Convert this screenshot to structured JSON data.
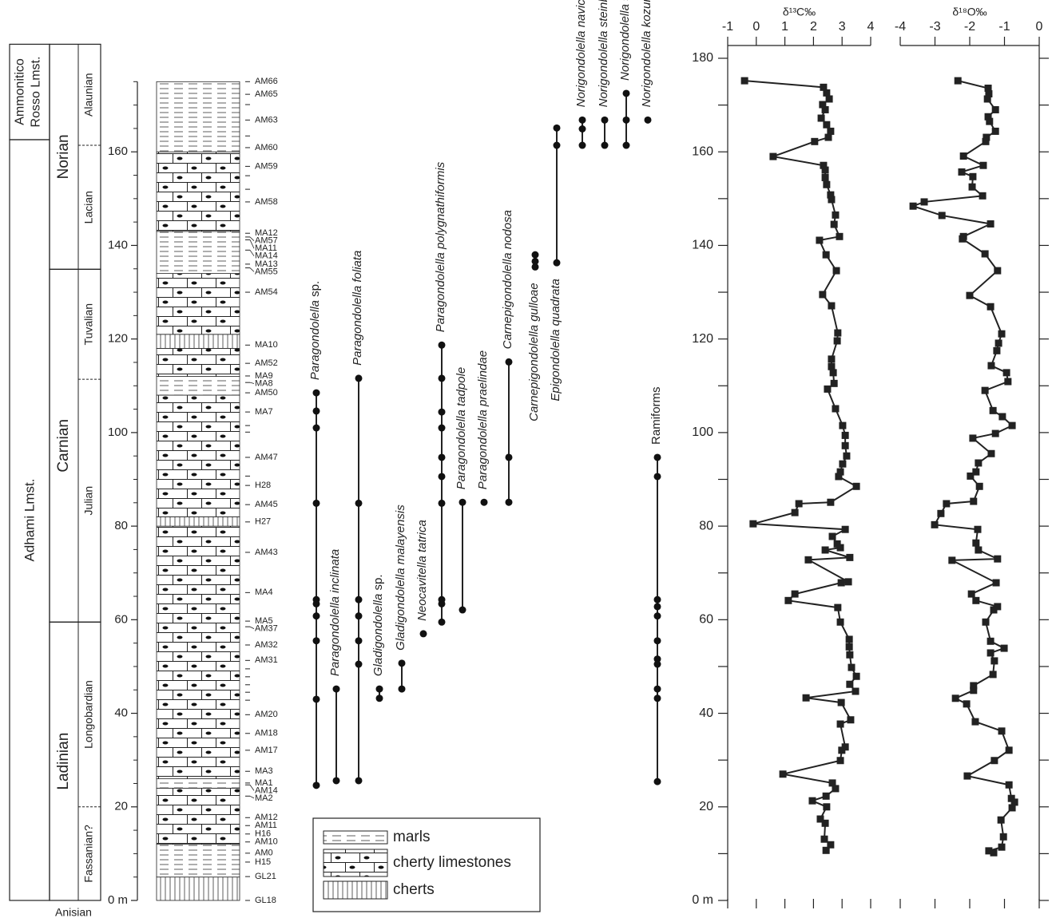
{
  "chart_data": [
    {
      "type": "range",
      "ylim": [
        0,
        180
      ],
      "yticks": [
        {
          "value": 0,
          "label": "0 m"
        },
        20,
        40,
        60,
        80,
        100,
        120,
        140,
        160
      ],
      "minor_yticks": [
        5,
        10,
        15,
        25,
        30,
        35,
        45,
        50,
        55,
        65,
        70,
        75,
        85,
        90,
        95,
        105,
        110,
        115,
        125,
        130,
        135,
        145,
        150,
        155,
        165,
        170,
        175
      ],
      "formations": [
        {
          "name": "Adhami Lmst.",
          "from": 0,
          "to": 162.6
        },
        {
          "name": "Ammonitico Rosso Lmst.",
          "from": 162.6,
          "to": 183
        }
      ],
      "stages": [
        {
          "name": "Ladinian",
          "from": 0,
          "to": 59.5
        },
        {
          "name": "Carnian",
          "from": 59.5,
          "to": 134.9
        },
        {
          "name": "Norian",
          "from": 134.9,
          "to": 183
        }
      ],
      "base_stage": "Anisian",
      "substages": [
        {
          "name": "Fassanian?",
          "from": 0,
          "to": 20
        },
        {
          "name": "Longobardian",
          "from": 20,
          "to": 59.5
        },
        {
          "name": "Julian",
          "from": 59.5,
          "to": 111.4
        },
        {
          "name": "Tuvalian",
          "from": 111.4,
          "to": 134.9
        },
        {
          "name": "Lacian",
          "from": 134.9,
          "to": 161.4
        },
        {
          "name": "Alaunian",
          "from": 161.4,
          "to": 183
        }
      ],
      "lithology": {
        "types": [
          "marls",
          "cherty limestones",
          "cherts"
        ],
        "beds": [
          {
            "from": 0,
            "to": 5,
            "type": "cherts"
          },
          {
            "from": 5,
            "to": 12,
            "type": "marls"
          },
          {
            "from": 12,
            "to": 24,
            "type": "cherty limestones"
          },
          {
            "from": 24,
            "to": 26,
            "type": "marls"
          },
          {
            "from": 26,
            "to": 80,
            "type": "cherty limestones"
          },
          {
            "from": 80,
            "to": 82,
            "type": "cherts"
          },
          {
            "from": 82,
            "to": 108,
            "type": "cherty limestones"
          },
          {
            "from": 108,
            "to": 112,
            "type": "marls"
          },
          {
            "from": 112,
            "to": 118,
            "type": "cherty limestones"
          },
          {
            "from": 118,
            "to": 121,
            "type": "cherts"
          },
          {
            "from": 121,
            "to": 134,
            "type": "cherty limestones"
          },
          {
            "from": 134,
            "to": 143,
            "type": "marls"
          },
          {
            "from": 143,
            "to": 160,
            "type": "cherty limestones"
          },
          {
            "from": 160,
            "to": 175,
            "type": "marls"
          }
        ]
      },
      "samples": [
        {
          "label": "AM66",
          "depth": 175
        },
        {
          "label": "AM65",
          "depth": 172.3
        },
        {
          "label": null,
          "depth": 170.1
        },
        {
          "label": "AM63",
          "depth": 166.8
        },
        {
          "label": null,
          "depth": 163.4
        },
        {
          "label": "AM60",
          "depth": 160.9
        },
        {
          "label": "AM59",
          "depth": 156.9
        },
        {
          "label": null,
          "depth": 154.9
        },
        {
          "label": null,
          "depth": 152
        },
        {
          "label": "AM58",
          "depth": 149.3
        },
        {
          "label": "MA12",
          "depth": 142.6
        },
        {
          "label": "AM57",
          "depth": 141.8
        },
        {
          "label": "MA11",
          "depth": 141.2
        },
        {
          "label": "MA14",
          "depth": 139
        },
        {
          "label": "MA13",
          "depth": 136
        },
        {
          "label": "AM55",
          "depth": 135.2
        },
        {
          "label": "AM54",
          "depth": 130
        },
        {
          "label": "MA10",
          "depth": 118.7
        },
        {
          "label": "AM52",
          "depth": 114.8
        },
        {
          "label": "MA9",
          "depth": 112.1
        },
        {
          "label": "MA8",
          "depth": 110.7
        },
        {
          "label": "AM50",
          "depth": 108.5
        },
        {
          "label": "MA7",
          "depth": 104.4
        },
        {
          "label": null,
          "depth": 101.5
        },
        {
          "label": null,
          "depth": 100.1
        },
        {
          "label": "AM47",
          "depth": 94.7
        },
        {
          "label": null,
          "depth": 90.7
        },
        {
          "label": "H28",
          "depth": 88.7
        },
        {
          "label": "AM45",
          "depth": 84.6
        },
        {
          "label": "H27",
          "depth": 80.9
        },
        {
          "label": "AM43",
          "depth": 74.4
        },
        {
          "label": "MA4",
          "depth": 65.8
        },
        {
          "label": "MA5",
          "depth": 59.7
        },
        {
          "label": "AM37",
          "depth": 58.5
        },
        {
          "label": "AM32",
          "depth": 54.6
        },
        {
          "label": "AM31",
          "depth": 51.3
        },
        {
          "label": null,
          "depth": 49.5
        },
        {
          "label": null,
          "depth": 47.8
        },
        {
          "label": null,
          "depth": 46.1
        },
        {
          "label": null,
          "depth": 44.5
        },
        {
          "label": null,
          "depth": 42.8
        },
        {
          "label": "AM20",
          "depth": 39.7
        },
        {
          "label": "AM18",
          "depth": 35.7
        },
        {
          "label": "AM17",
          "depth": 32.1
        },
        {
          "label": "MA3",
          "depth": 27.6
        },
        {
          "label": "MA1",
          "depth": 25.1
        },
        {
          "label": "AM14",
          "depth": 24.7
        },
        {
          "label": "MA2",
          "depth": 22.3
        },
        {
          "label": "AM12",
          "depth": 17.7
        },
        {
          "label": "AM11",
          "depth": 16
        },
        {
          "label": "H16",
          "depth": 14.2
        },
        {
          "label": "AM10",
          "depth": 12.5
        },
        {
          "label": "AM0",
          "depth": 10.1
        },
        {
          "label": "H15",
          "depth": 8.2
        },
        {
          "label": "GL21",
          "depth": 5.1
        },
        {
          "label": "GL18",
          "depth": 0
        }
      ],
      "taxa": [
        {
          "name": "Paragondolella sp.",
          "occurrences": [
            108.5,
            104.6,
            101,
            84.9,
            64.3,
            63.4,
            60.8,
            55.5,
            43,
            24.6
          ]
        },
        {
          "name": "Paragondolella inclinata",
          "occurrences": [
            45.2,
            25.6
          ]
        },
        {
          "name": "Paragondolella foliata",
          "occurrences": [
            111.6,
            84.9,
            64.3,
            60.8,
            55.5,
            50.5,
            25.6
          ]
        },
        {
          "name": "Gladigondolella sp.",
          "occurrences": [
            45.2,
            43.2
          ]
        },
        {
          "name": "Gladigondolella malayensis",
          "occurrences": [
            50.7,
            45.2
          ]
        },
        {
          "name": "Neocavitella tatrica",
          "occurrences": [
            57
          ]
        },
        {
          "name": "Paragondolella polygnathiformis",
          "occurrences": [
            118.7,
            111.6,
            104.4,
            101,
            94.7,
            90.6,
            84.9,
            64.3,
            63.4,
            59.5
          ]
        },
        {
          "name": "Paragondolella tadpole",
          "occurrences": [
            85.1,
            62.1
          ]
        },
        {
          "name": "Paragondolella praelindae",
          "occurrences": [
            85.1
          ]
        },
        {
          "name": "Carnepigondolella nodosa",
          "occurrences": [
            115.1,
            94.7,
            85.1
          ]
        },
        {
          "name": "Carnepigondolella gulloae",
          "occurrences": [
            138,
            136.6,
            135.4
          ]
        },
        {
          "name": "Epigondolella quadrata",
          "occurrences": [
            165.1,
            161.4,
            136.3
          ]
        },
        {
          "name": "Norigondolella navicula",
          "occurrences": [
            166.8,
            164.9,
            161.4
          ]
        },
        {
          "name": "Norigondolella steinbergensis",
          "occurrences": [
            166.8,
            161.4
          ]
        },
        {
          "name": "Norigondolella sp.",
          "occurrences": [
            172.5,
            166.8,
            161.4
          ]
        },
        {
          "name": "Norigondolella kozuri",
          "occurrences": [
            166.8
          ]
        },
        {
          "name": "Ramiforms",
          "occurrences": [
            94.7,
            90.6,
            64.3,
            62.8,
            60.8,
            55.5,
            51.6,
            50.5,
            45.2,
            43.2,
            25.4
          ]
        }
      ]
    },
    {
      "type": "line",
      "title": "δ¹³C‰",
      "xlim": [
        -1,
        4
      ],
      "xticks": [
        -1,
        0,
        1,
        2,
        3,
        4
      ],
      "ylim": [
        0,
        180
      ],
      "yticks": [
        {
          "value": 0,
          "label": "0 m"
        },
        20,
        40,
        60,
        80,
        100,
        120,
        140,
        160,
        180
      ],
      "minor_yticks": [
        10,
        30,
        50,
        70,
        90,
        110,
        130,
        150,
        170
      ],
      "y_axis_side": "left",
      "series": [
        {
          "color": "#222222",
          "depth": [
            175.2,
            173.8,
            172.6,
            171.3,
            170.1,
            169,
            167.2,
            165.8,
            164.4,
            163.1,
            162.2,
            159,
            157.1,
            156.1,
            154.5,
            153,
            150.8,
            149.8,
            146.5,
            144.5,
            141.9,
            141.1,
            138,
            134.6,
            129.5,
            127.1,
            121.3,
            119.6,
            115.7,
            114.1,
            112.8,
            110.5,
            109.3,
            105.1,
            101.5,
            99.4,
            97.2,
            95,
            93.3,
            91.6,
            90.6,
            88.5,
            85.1,
            84.8,
            82.9,
            80.5,
            79.3,
            77.8,
            76.2,
            75.4,
            74.9,
            73.3,
            72.8,
            68.1,
            67.9,
            65.5,
            64.1,
            62.6,
            59.5,
            55.8,
            54.2,
            52.5,
            49.8,
            47.9,
            46.2,
            44.7,
            43.3,
            42.3,
            38.6,
            37.7,
            32.8,
            32.1,
            29.9,
            27,
            25.1,
            23.9,
            22.3,
            21.3,
            20,
            17.4,
            16.5,
            13.1,
            11.9,
            10.7
          ],
          "values": [
            -0.41,
            2.35,
            2.46,
            2.55,
            2.32,
            2.41,
            2.27,
            2.46,
            2.6,
            2.52,
            2.04,
            0.59,
            2.35,
            2.41,
            2.41,
            2.46,
            2.6,
            2.63,
            2.77,
            2.72,
            2.91,
            2.21,
            2.44,
            2.8,
            2.32,
            2.63,
            2.85,
            2.83,
            2.63,
            2.63,
            2.69,
            2.72,
            2.49,
            2.77,
            3.02,
            3.11,
            3.11,
            3.16,
            3.02,
            2.94,
            2.88,
            3.5,
            2.6,
            1.49,
            1.35,
            -0.11,
            3.11,
            2.66,
            2.83,
            2.94,
            2.41,
            3.27,
            1.82,
            3.22,
            2.97,
            1.35,
            1.12,
            2.85,
            2.94,
            3.25,
            3.25,
            3.27,
            3.33,
            3.5,
            3.27,
            3.47,
            1.74,
            2.97,
            3.3,
            2.94,
            3.11,
            2.99,
            2.94,
            0.93,
            2.66,
            2.77,
            2.44,
            1.96,
            2.46,
            2.24,
            2.41,
            2.38,
            2.6,
            2.44
          ]
        }
      ]
    },
    {
      "type": "line",
      "title": "δ¹⁸O‰",
      "xlim": [
        -4,
        0
      ],
      "xticks": [
        -4,
        -3,
        -2,
        -1,
        0
      ],
      "ylim": [
        0,
        180
      ],
      "yticks": [
        0,
        10,
        20,
        30,
        40,
        50,
        60,
        70,
        80,
        90,
        100,
        110,
        120,
        130,
        140,
        150,
        160,
        170,
        180
      ],
      "ytick_labels": false,
      "y_axis_side": "right",
      "series": [
        {
          "color": "#222222",
          "depth": [
            175.2,
            173.6,
            172.4,
            171.3,
            169,
            167.5,
            166.5,
            164.4,
            163.1,
            162.2,
            159.1,
            157.1,
            155.7,
            154.7,
            152.5,
            150.6,
            149.3,
            148.4,
            146.4,
            144.6,
            141.9,
            141.4,
            138.2,
            134.6,
            129.3,
            126.9,
            121.1,
            119.1,
            117.5,
            114.3,
            112.8,
            110.9,
            109,
            104.7,
            103.4,
            101.5,
            99.8,
            98.8,
            95.5,
            93.5,
            91.6,
            90.7,
            88.5,
            85.3,
            84.8,
            82.7,
            80.3,
            79.3,
            76.4,
            74.9,
            73,
            72.7,
            67.9,
            65.5,
            64.1,
            62.8,
            62.1,
            59.5,
            55.4,
            53.9,
            52.9,
            51.2,
            48.3,
            45.9,
            44.9,
            43.2,
            42,
            38.2,
            36.2,
            32.1,
            29.9,
            26.6,
            24.7,
            21.8,
            21,
            19.8,
            17.2,
            13.6,
            11.4,
            10.6,
            10.2
          ],
          "values": [
            -2.34,
            -1.47,
            -1.45,
            -1.49,
            -1.26,
            -1.47,
            -1.43,
            -1.26,
            -1.52,
            -1.54,
            -2.18,
            -1.61,
            -2.23,
            -1.91,
            -1.93,
            -1.63,
            -3.31,
            -3.63,
            -2.8,
            -1.4,
            -2.18,
            -2.21,
            -1.56,
            -1.2,
            -2,
            -1.4,
            -1.08,
            -1.17,
            -1.22,
            -1.38,
            -0.94,
            -0.9,
            -1.56,
            -1.33,
            -1.06,
            -0.78,
            -1.26,
            -1.91,
            -1.38,
            -1.75,
            -1.82,
            -1.98,
            -1.72,
            -1.89,
            -2.67,
            -2.83,
            -3.01,
            -1.77,
            -1.82,
            -1.75,
            -1.2,
            -2.51,
            -1.24,
            -1.95,
            -1.82,
            -1.2,
            -1.31,
            -1.54,
            -1.4,
            -1.01,
            -1.4,
            -1.29,
            -1.33,
            -1.89,
            -1.89,
            -2.41,
            -2.09,
            -1.84,
            -1.08,
            -0.87,
            -1.29,
            -2.07,
            -0.87,
            -0.8,
            -0.71,
            -0.78,
            -1.1,
            -1.03,
            -1.08,
            -1.45,
            -1.31
          ]
        }
      ]
    }
  ]
}
